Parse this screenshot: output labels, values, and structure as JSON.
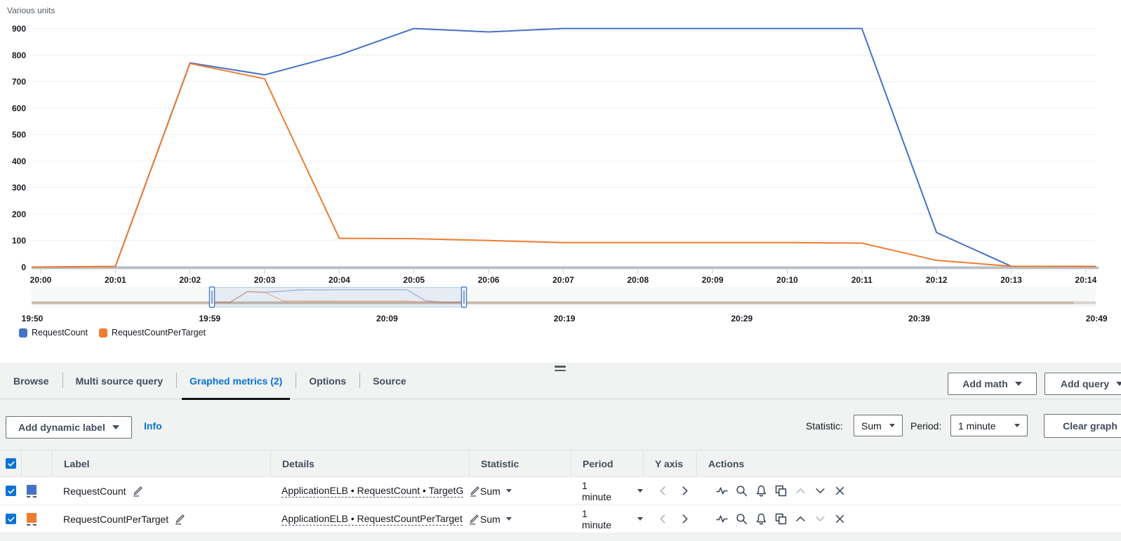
{
  "colors": {
    "accent": "#0972d3",
    "series_blue": "#4472c4",
    "series_orange": "#ed7d31",
    "active_tab_underline": "#0f1419",
    "brush_baseline": "#c9baab"
  },
  "chart_data": {
    "type": "line",
    "title": "",
    "ylabel": "Various units",
    "xlabel": "",
    "ylim": [
      0,
      900
    ],
    "y_ticks": [
      0,
      100,
      200,
      300,
      400,
      500,
      600,
      700,
      800,
      900
    ],
    "grid": true,
    "legend_position": "bottom-left",
    "x": [
      "20:00",
      "20:01",
      "20:02",
      "20:03",
      "20:04",
      "20:05",
      "20:06",
      "20:07",
      "20:08",
      "20:09",
      "20:10",
      "20:11",
      "20:12",
      "20:13",
      "20:14"
    ],
    "series": [
      {
        "name": "RequestCount",
        "color": "#4472c4",
        "values": [
          0,
          2,
          770,
          725,
          800,
          900,
          887,
          900,
          900,
          900,
          900,
          900,
          130,
          3,
          2
        ]
      },
      {
        "name": "RequestCountPerTarget",
        "color": "#ed7d31",
        "values": [
          0,
          2,
          768,
          710,
          108,
          107,
          100,
          92,
          92,
          92,
          92,
          90,
          25,
          3,
          2
        ]
      }
    ],
    "timeline": {
      "labels": [
        "19:50",
        "19:59",
        "20:09",
        "20:19",
        "20:29",
        "20:39",
        "20:49"
      ],
      "selection_start": "20:00",
      "selection_end": "20:14"
    }
  },
  "panel": {
    "tabs": [
      {
        "label": "Browse",
        "active": false
      },
      {
        "label": "Multi source query",
        "active": false
      },
      {
        "label": "Graphed metrics (2)",
        "active": true
      },
      {
        "label": "Options",
        "active": false
      },
      {
        "label": "Source",
        "active": false
      }
    ],
    "add_math_label": "Add math",
    "add_query_label": "Add query",
    "toolbar": {
      "add_dynamic_label": "Add dynamic label",
      "info_label": "Info",
      "statistic_label": "Statistic:",
      "statistic_value": "Sum",
      "period_label": "Period:",
      "period_value": "1 minute",
      "clear_graph_label": "Clear graph"
    },
    "table": {
      "columns": [
        "Label",
        "Details",
        "Statistic",
        "Period",
        "Y axis",
        "Actions"
      ],
      "action_icons": [
        "activity",
        "search",
        "alarm",
        "duplicate",
        "move-up",
        "move-down",
        "remove"
      ],
      "yaxis_icons": [
        "chevron-left",
        "chevron-right"
      ],
      "rows": [
        {
          "checked": true,
          "color": "#4472c4",
          "label": "RequestCount",
          "details": "ApplicationELB • RequestCount • TargetG",
          "statistic": "Sum",
          "period": "1 minute",
          "disabled_action": "move-up"
        },
        {
          "checked": true,
          "color": "#ed7d31",
          "label": "RequestCountPerTarget",
          "details": "ApplicationELB • RequestCountPerTarget",
          "statistic": "Sum",
          "period": "1 minute",
          "disabled_action": "move-down"
        }
      ]
    }
  }
}
